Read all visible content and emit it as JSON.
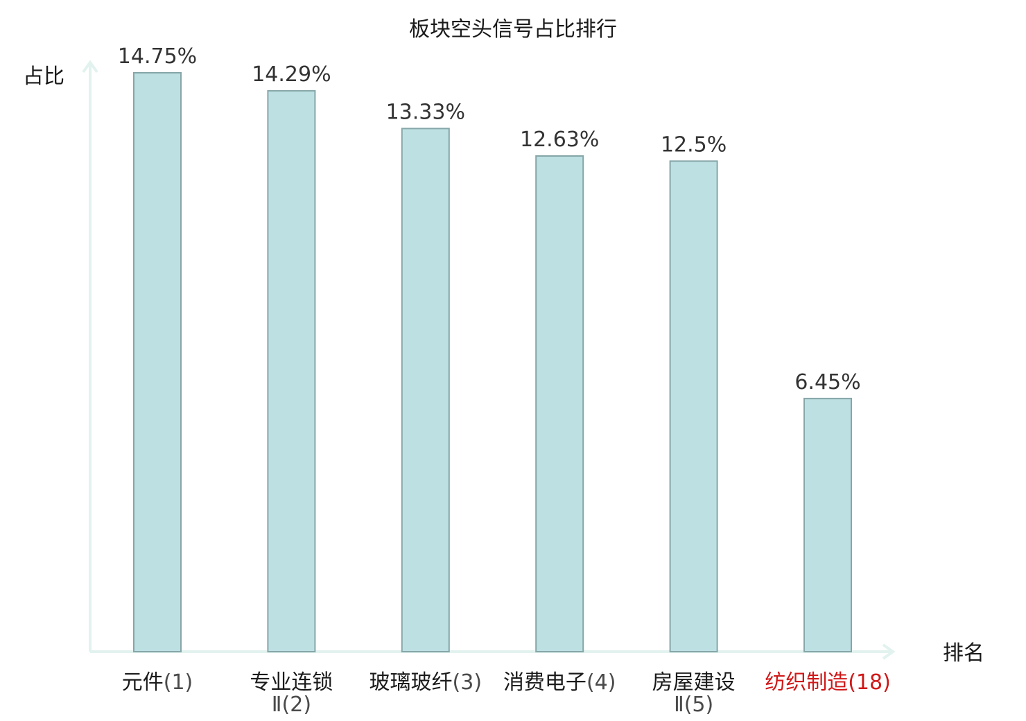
{
  "chart_data": {
    "type": "bar",
    "title": "板块空头信号占比排行",
    "ylabel": "占比",
    "xlabel": "排名",
    "ylim": [
      0,
      14.75
    ],
    "categories": [
      {
        "name": "元件",
        "rank": "(1)",
        "highlight": false
      },
      {
        "name": "专业连锁",
        "name2": "Ⅱ",
        "rank": "(2)",
        "highlight": false
      },
      {
        "name": "玻璃玻纤",
        "rank": "(3)",
        "highlight": false
      },
      {
        "name": "消费电子",
        "rank": "(4)",
        "highlight": false
      },
      {
        "name": "房屋建设",
        "name2": "Ⅱ",
        "rank": "(5)",
        "highlight": false
      },
      {
        "name": "纺织制造",
        "rank": "(18)",
        "highlight": true
      }
    ],
    "values": [
      14.75,
      14.29,
      13.33,
      12.63,
      12.5,
      6.45
    ],
    "value_labels": [
      "14.75%",
      "14.29%",
      "13.33%",
      "12.63%",
      "12.5%",
      "6.45%"
    ],
    "grid": false,
    "colors": {
      "bar_fill": "#bde0e3",
      "bar_stroke": "#86a6a8",
      "axis": "#e2f2ef",
      "highlight_label": "#d01818"
    }
  }
}
